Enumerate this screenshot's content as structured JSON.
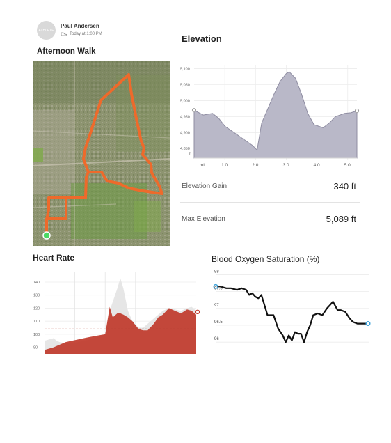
{
  "profile": {
    "avatar_text": "ATHLETE",
    "name": "Paul Andersen",
    "time": "Today at 1:00 PM"
  },
  "workout": {
    "title": "Afternoon Walk"
  },
  "elevation": {
    "title": "Elevation",
    "y_ticks": [
      "5,100",
      "5,050",
      "5,000",
      "4,950",
      "4,900",
      "4,850"
    ],
    "y_unit": "ft",
    "x_unit": "mi",
    "x_ticks": [
      "1.0",
      "2.0",
      "3.0",
      "4.0",
      "5.0"
    ],
    "stats": [
      {
        "label": "Elevation Gain",
        "value": "340 ft"
      },
      {
        "label": "Max Elevation",
        "value": "5,089 ft"
      }
    ]
  },
  "heart_rate": {
    "title": "Heart Rate",
    "y_ticks": [
      "140",
      "130",
      "120",
      "110",
      "100",
      "90"
    ]
  },
  "spo2": {
    "title": "Blood Oxygen Saturation (%)",
    "y_ticks": [
      "98",
      "97.5",
      "97",
      "96.5",
      "96"
    ]
  },
  "colors": {
    "route": "#ee6a2b",
    "elevation_fill": "#b9b8c8",
    "heart_fill": "#c0392b",
    "heart_ghost": "#e6e6e6",
    "spo2_line": "#111111",
    "spo2_marker": "#3aa0d8",
    "start_marker": "#4cd964"
  },
  "chart_data": [
    {
      "type": "area",
      "title": "Elevation",
      "xlabel": "mi",
      "ylabel": "ft",
      "xlim": [
        0.0,
        5.3
      ],
      "ylim": [
        4820,
        5110
      ],
      "x": [
        0.0,
        0.3,
        0.6,
        0.8,
        1.0,
        1.3,
        1.6,
        1.9,
        2.05,
        2.2,
        2.4,
        2.6,
        2.8,
        3.0,
        3.1,
        3.3,
        3.5,
        3.7,
        3.9,
        4.2,
        4.4,
        4.6,
        4.9,
        5.1,
        5.3
      ],
      "series": [
        {
          "values": [
            4970,
            4955,
            4960,
            4945,
            4920,
            4900,
            4880,
            4860,
            4845,
            4930,
            4975,
            5020,
            5060,
            5085,
            5090,
            5070,
            5020,
            4960,
            4925,
            4915,
            4930,
            4950,
            4960,
            4962,
            4968
          ]
        }
      ]
    },
    {
      "type": "area",
      "title": "Heart Rate",
      "ylim": [
        85,
        148
      ],
      "x": [
        0,
        3,
        6,
        8,
        10,
        14,
        18,
        22,
        26,
        30,
        35,
        40,
        43,
        45,
        48,
        50,
        52,
        55,
        58,
        62,
        65,
        68,
        72,
        75,
        78,
        82,
        86,
        90,
        94,
        97,
        100
      ],
      "series": [
        {
          "name": "current",
          "values": [
            88,
            89,
            90,
            91,
            92,
            94,
            95,
            96,
            97,
            98,
            99,
            100,
            121,
            113,
            116,
            116,
            115,
            113,
            110,
            104,
            103,
            103,
            108,
            113,
            115,
            120,
            118,
            116,
            119,
            118,
            115
          ]
        },
        {
          "name": "previous",
          "values": [
            95,
            96,
            97,
            95,
            94,
            93,
            93,
            94,
            95,
            96,
            98,
            100,
            118,
            125,
            135,
            143,
            135,
            118,
            110,
            105,
            105,
            108,
            112,
            115,
            118,
            120,
            119,
            118,
            120,
            121,
            118
          ]
        }
      ],
      "average": 104
    },
    {
      "type": "line",
      "title": "Blood Oxygen Saturation (%)",
      "ylim": [
        95.9,
        98.05
      ],
      "x": [
        0,
        3,
        7,
        10,
        14,
        17,
        20,
        22,
        24,
        26,
        28,
        30,
        34,
        38,
        41,
        44,
        46,
        48,
        50,
        52,
        54,
        56,
        58,
        60,
        62,
        64,
        67,
        70,
        73,
        75,
        77,
        80,
        82,
        85,
        88,
        90,
        93,
        96,
        100
      ],
      "series": [
        {
          "values": [
            97.65,
            97.65,
            97.6,
            97.6,
            97.55,
            97.6,
            97.55,
            97.4,
            97.45,
            97.35,
            97.3,
            97.4,
            96.8,
            96.8,
            96.4,
            96.2,
            96.0,
            96.2,
            96.05,
            96.3,
            96.25,
            96.25,
            96.0,
            96.3,
            96.5,
            96.8,
            96.85,
            96.8,
            97.0,
            97.1,
            97.2,
            96.95,
            96.95,
            96.9,
            96.7,
            96.6,
            96.55,
            96.55,
            96.55
          ]
        }
      ]
    }
  ]
}
